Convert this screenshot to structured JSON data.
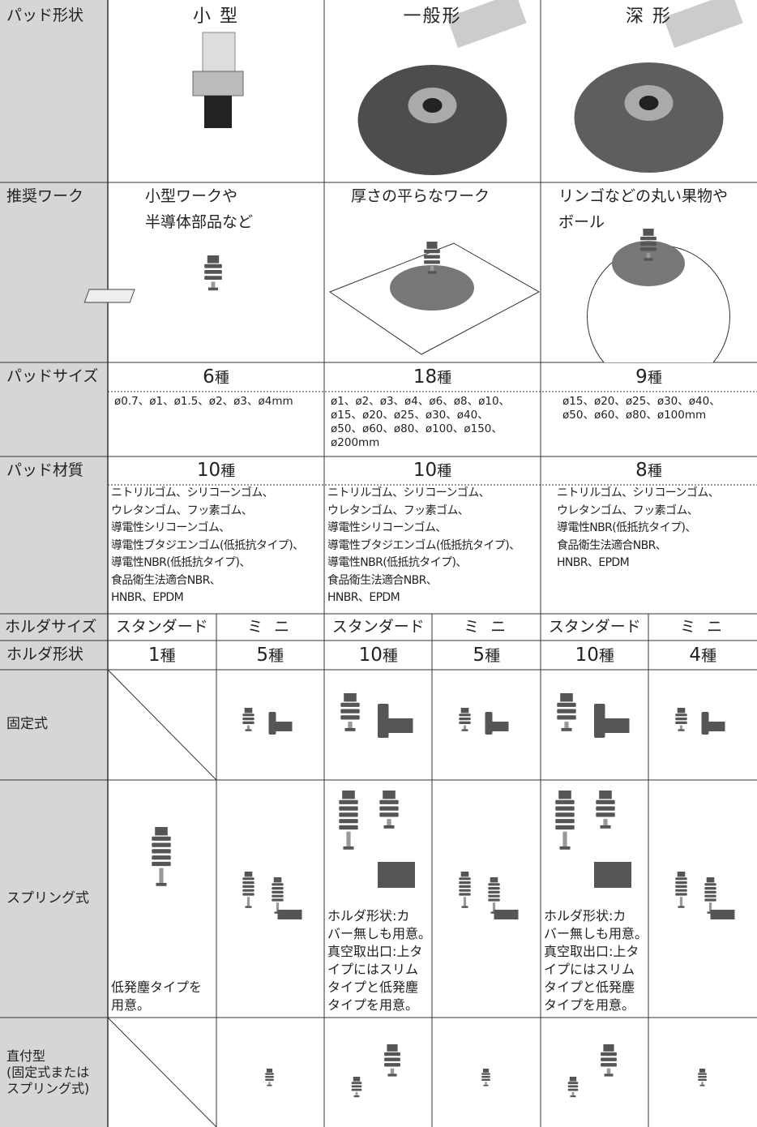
{
  "row_labels": {
    "pad_shape": "パッド形状",
    "work": "推奨ワーク",
    "pad_size": "パッドサイズ",
    "material": "パッド材質",
    "holder_size": "ホルダサイズ",
    "holder_shape": "ホルダ形状",
    "fixed": "固定式",
    "spring": "スプリング式",
    "direct": [
      "直付型",
      "(固定式または",
      "スプリング式)"
    ]
  },
  "columns": [
    {
      "pad_shape": "小 型",
      "work": [
        "小型ワークや",
        "半導体部品など"
      ],
      "size_count": "6",
      "size_unit": "種",
      "sizes": [
        "ø0.7、ø1、ø1.5、ø2、ø3、ø4mm"
      ],
      "material_count": "10",
      "material_unit": "種",
      "materials": [
        "ニトリルゴム、シリコーンゴム、",
        "ウレタンゴム、フッ素ゴム、",
        "導電性シリコーンゴム、",
        "導電性ブタジエンゴム(低抵抗タイプ)、",
        "導電性NBR(低抵抗タイプ)、",
        "食品衛生法適合NBR、",
        "HNBR、EPDM"
      ],
      "holders": [
        {
          "size": "スタンダード",
          "count": "1",
          "unit": "種",
          "spring_note": [
            "低発塵タイプを",
            "用意。"
          ]
        },
        {
          "size": "ミ ニ",
          "count": "5",
          "unit": "種"
        }
      ]
    },
    {
      "pad_shape": "一般形",
      "work": [
        "厚さの平らなワーク"
      ],
      "size_count": "18",
      "size_unit": "種",
      "sizes": [
        "ø1、ø2、ø3、ø4、ø6、ø8、ø10、",
        "ø15、ø20、ø25、ø30、ø40、",
        "ø50、ø60、ø80、ø100、ø150、",
        "ø200mm"
      ],
      "material_count": "10",
      "material_unit": "種",
      "materials": [
        "ニトリルゴム、シリコーンゴム、",
        "ウレタンゴム、フッ素ゴム、",
        "導電性シリコーンゴム、",
        "導電性ブタジエンゴム(低抵抗タイプ)、",
        "導電性NBR(低抵抗タイプ)、",
        "食品衛生法適合NBR、",
        "HNBR、EPDM"
      ],
      "holders": [
        {
          "size": "スタンダード",
          "count": "10",
          "unit": "種",
          "spring_note": [
            "ホルダ形状:カ",
            "バー無しも用意。",
            "真空取出口:上タ",
            "イプにはスリム",
            "タイプと低発塵",
            "タイプを用意。"
          ]
        },
        {
          "size": "ミ ニ",
          "count": "5",
          "unit": "種"
        }
      ]
    },
    {
      "pad_shape": "深 形",
      "work": [
        "リンゴなどの丸い果物や",
        "ボール"
      ],
      "size_count": "9",
      "size_unit": "種",
      "sizes": [
        "ø15、ø20、ø25、ø30、ø40、",
        "ø50、ø60、ø80、ø100mm"
      ],
      "material_count": "8",
      "material_unit": "種",
      "materials": [
        "ニトリルゴム、シリコーンゴム、",
        "ウレタンゴム、フッ素ゴム、",
        "導電性NBR(低抵抗タイプ)、",
        "食品衛生法適合NBR、",
        "HNBR、EPDM"
      ],
      "holders": [
        {
          "size": "スタンダード",
          "count": "10",
          "unit": "種",
          "spring_note": [
            "ホルダ形状:カ",
            "バー無しも用意。",
            "真空取出口:上タ",
            "イプにはスリム",
            "タイプと低発塵",
            "タイプを用意。"
          ]
        },
        {
          "size": "ミ ニ",
          "count": "4",
          "unit": "種"
        }
      ]
    }
  ]
}
